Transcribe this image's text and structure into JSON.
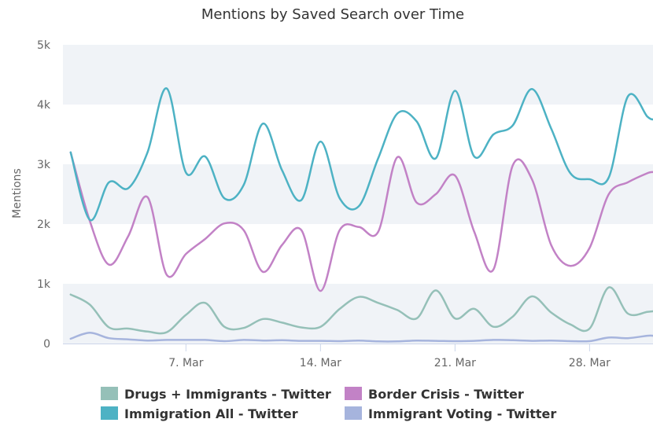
{
  "chart_data": {
    "type": "line",
    "title": "Mentions by Saved Search over Time",
    "ylabel": "Mentions",
    "xlabel": "",
    "ylim": [
      0,
      5000
    ],
    "yticks": [
      0,
      1000,
      2000,
      3000,
      4000,
      5000
    ],
    "ytick_labels": [
      "0",
      "1k",
      "2k",
      "3k",
      "4k",
      "5k"
    ],
    "xlim": [
      0.6,
      31.3
    ],
    "xticks": [
      7,
      14,
      21,
      28
    ],
    "xtick_labels": [
      "7. Mar",
      "14. Mar",
      "21. Mar",
      "28. Mar"
    ],
    "legend_position": "bottom",
    "x": [
      1,
      2,
      3,
      4,
      5,
      6,
      7,
      8,
      9,
      10,
      11,
      12,
      13,
      14,
      15,
      16,
      17,
      18,
      19,
      20,
      21,
      22,
      23,
      24,
      25,
      26,
      27,
      28,
      29,
      30,
      31,
      31.3
    ],
    "series": [
      {
        "name": "Drugs + Immigrants - Twitter",
        "color": "#95c0b8",
        "values": [
          820,
          650,
          270,
          250,
          200,
          190,
          480,
          680,
          280,
          260,
          410,
          350,
          270,
          280,
          580,
          780,
          680,
          560,
          420,
          890,
          420,
          580,
          280,
          450,
          790,
          520,
          320,
          250,
          940,
          500,
          530,
          540
        ]
      },
      {
        "name": "Border Crisis - Twitter",
        "color": "#c282c6",
        "values": [
          3200,
          2050,
          1320,
          1800,
          2450,
          1150,
          1500,
          1750,
          2010,
          1900,
          1200,
          1650,
          1900,
          880,
          1900,
          1950,
          1870,
          3120,
          2360,
          2500,
          2810,
          1870,
          1240,
          2980,
          2750,
          1650,
          1300,
          1600,
          2500,
          2700,
          2850,
          2870
        ]
      },
      {
        "name": "Immigration All - Twitter",
        "color": "#4db2c4",
        "values": [
          3200,
          2070,
          2700,
          2600,
          3200,
          4270,
          2860,
          3130,
          2430,
          2650,
          3680,
          2900,
          2400,
          3380,
          2430,
          2300,
          3100,
          3850,
          3720,
          3100,
          4230,
          3130,
          3500,
          3650,
          4260,
          3600,
          2850,
          2750,
          2780,
          4140,
          3800,
          3750
        ]
      },
      {
        "name": "Immigrant Voting - Twitter",
        "color": "#a6b4dd",
        "values": [
          80,
          180,
          90,
          70,
          50,
          60,
          60,
          60,
          40,
          60,
          50,
          55,
          45,
          45,
          40,
          50,
          35,
          35,
          50,
          45,
          40,
          45,
          60,
          55,
          45,
          50,
          40,
          40,
          100,
          90,
          130,
          130
        ]
      }
    ],
    "legend": [
      [
        "Drugs + Immigrants - Twitter",
        "Border Crisis - Twitter"
      ],
      [
        "Immigration All - Twitter",
        "Immigrant Voting - Twitter"
      ]
    ]
  }
}
